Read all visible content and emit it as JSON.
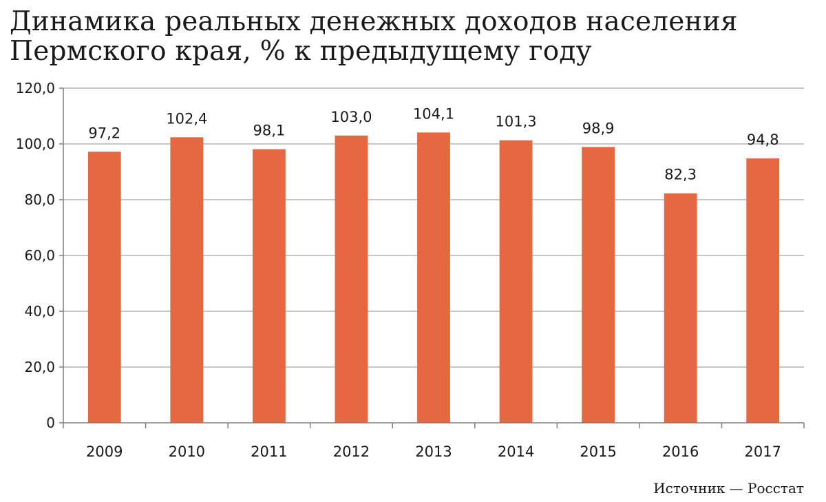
{
  "title_lines": [
    "Динамика реальных денежных доходов населения",
    "Пермского края, % к предыдущему году"
  ],
  "source": "Источник — Росстат",
  "colors": {
    "bar": "#E66841",
    "grid": "#8c8c8c",
    "axis": "#7f7f7f",
    "text": "#1a1a1a"
  },
  "chart_data": {
    "type": "bar",
    "categories": [
      "2009",
      "2010",
      "2011",
      "2012",
      "2013",
      "2014",
      "2015",
      "2016",
      "2017"
    ],
    "values": [
      97.2,
      102.4,
      98.1,
      103.0,
      104.1,
      101.3,
      98.9,
      82.3,
      94.8
    ],
    "data_labels": [
      "97,2",
      "102,4",
      "98,1",
      "103,0",
      "104,1",
      "101,3",
      "98,9",
      "82,3",
      "94,8"
    ],
    "y_ticks": [
      0,
      20,
      40,
      60,
      80,
      100,
      120
    ],
    "y_tick_labels": [
      "0",
      "20,0",
      "40,0",
      "60,0",
      "80,0",
      "100,0",
      "120,0"
    ],
    "ylim": [
      0,
      120
    ],
    "grid": true,
    "legend": false
  }
}
